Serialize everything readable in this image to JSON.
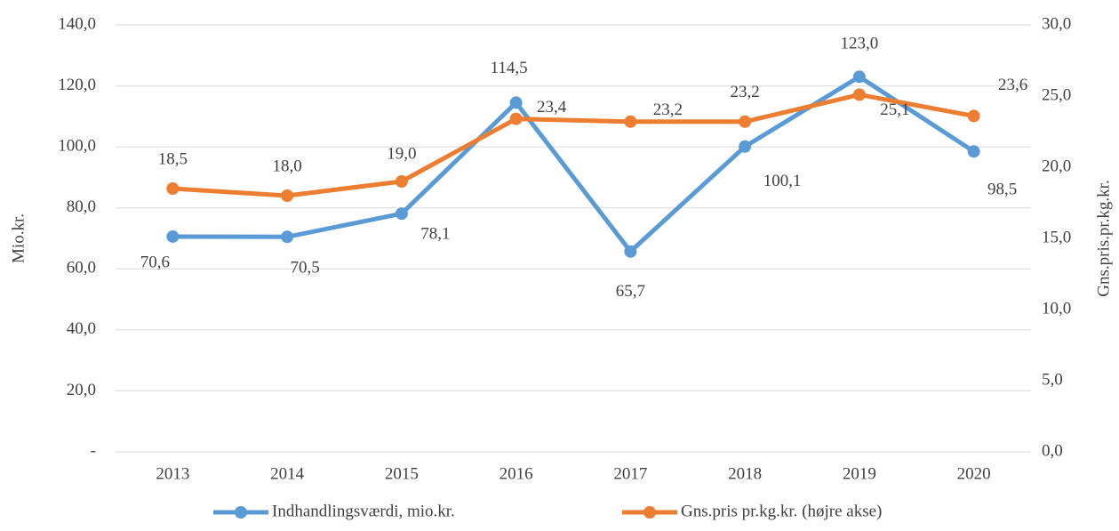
{
  "chart_data": {
    "type": "line",
    "ylabel": "Mio.kr.",
    "y2label": "Gns.pris.pr.kg.kr.",
    "categories": [
      "2013",
      "2014",
      "2015",
      "2016",
      "2017",
      "2018",
      "2019",
      "2020"
    ],
    "series": [
      {
        "name": "Indhandlingsværdi, mio.kr.",
        "color": "#5b9bd5",
        "values": [
          70.6,
          70.5,
          78.1,
          114.5,
          65.7,
          100.1,
          123.0,
          98.5
        ],
        "value_labels": [
          "70,6",
          "70,5",
          "78,1",
          "114,5",
          "65,7",
          "100,1",
          "123,0",
          "98,5"
        ]
      },
      {
        "name": "Gns.pris pr.kg.kr. (højre akse)",
        "color": "#ed7d31",
        "axis": "y2",
        "values": [
          18.5,
          18.0,
          19.0,
          23.4,
          23.2,
          23.2,
          25.1,
          23.6
        ],
        "value_labels": [
          "18,5",
          "18,0",
          "19,0",
          "23,4",
          "23,2",
          "23,2",
          "25,1",
          "23,6"
        ]
      }
    ],
    "ylim": [
      0,
      140
    ],
    "yticks": [
      {
        "value": 0,
        "label": "-"
      },
      {
        "value": 20,
        "label": "20,0"
      },
      {
        "value": 40,
        "label": "40,0"
      },
      {
        "value": 60,
        "label": "60,0"
      },
      {
        "value": 80,
        "label": "80,0"
      },
      {
        "value": 100,
        "label": "100,0"
      },
      {
        "value": 120,
        "label": "120,0"
      },
      {
        "value": 140,
        "label": "140,0"
      }
    ],
    "y2lim": [
      0,
      30
    ],
    "y2ticks": [
      {
        "value": 0,
        "label": "0,0"
      },
      {
        "value": 5,
        "label": "5,0"
      },
      {
        "value": 10,
        "label": "10,0"
      },
      {
        "value": 15,
        "label": "15,0"
      },
      {
        "value": 20,
        "label": "20,0"
      },
      {
        "value": 25,
        "label": "25,0"
      },
      {
        "value": 30,
        "label": "30,0"
      }
    ],
    "grid": true,
    "legend": "bottom"
  }
}
